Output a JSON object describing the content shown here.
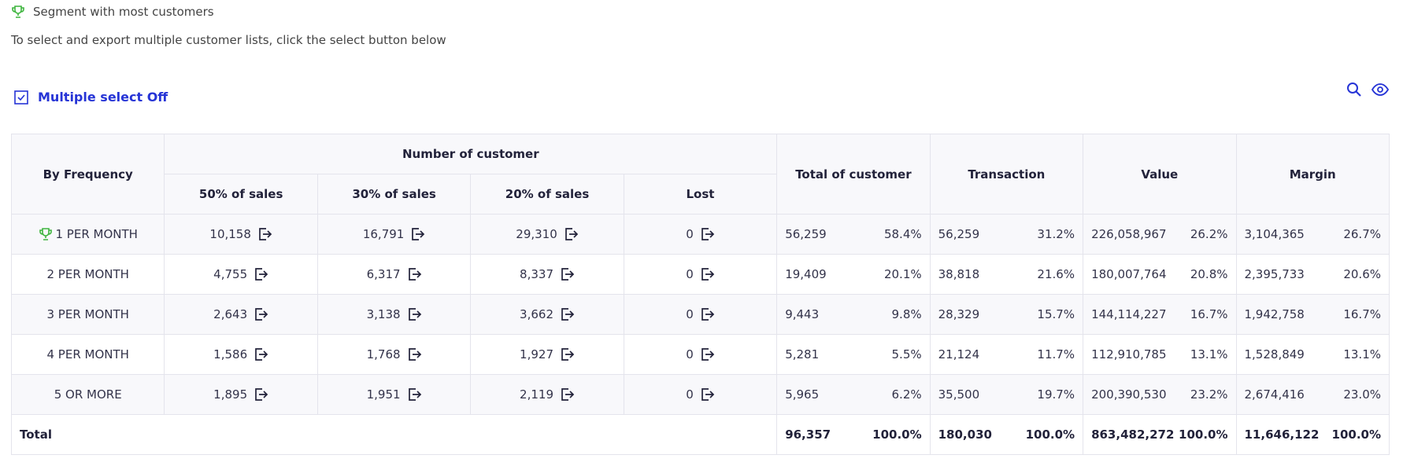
{
  "header": {
    "legend": "Segment with most customers",
    "instruction": "To select and export multiple customer lists, click the select button below",
    "toggle": "Multiple select Off"
  },
  "table": {
    "first_column": "By Frequency",
    "group": "Number of customer",
    "sub_columns": [
      "50% of sales",
      "30% of sales",
      "20% of sales",
      "Lost"
    ],
    "metric_columns": [
      "Total of customer",
      "Transaction",
      "Value",
      "Margin"
    ],
    "rows": [
      {
        "label": "1 PER MONTH",
        "trophy": true,
        "counts": [
          "10,158",
          "16,791",
          "29,310",
          "0"
        ],
        "metrics": [
          [
            "56,259",
            "58.4%"
          ],
          [
            "56,259",
            "31.2%"
          ],
          [
            "226,058,967",
            "26.2%"
          ],
          [
            "3,104,365",
            "26.7%"
          ]
        ]
      },
      {
        "label": "2 PER MONTH",
        "counts": [
          "4,755",
          "6,317",
          "8,337",
          "0"
        ],
        "metrics": [
          [
            "19,409",
            "20.1%"
          ],
          [
            "38,818",
            "21.6%"
          ],
          [
            "180,007,764",
            "20.8%"
          ],
          [
            "2,395,733",
            "20.6%"
          ]
        ]
      },
      {
        "label": "3 PER MONTH",
        "counts": [
          "2,643",
          "3,138",
          "3,662",
          "0"
        ],
        "metrics": [
          [
            "9,443",
            "9.8%"
          ],
          [
            "28,329",
            "15.7%"
          ],
          [
            "144,114,227",
            "16.7%"
          ],
          [
            "1,942,758",
            "16.7%"
          ]
        ]
      },
      {
        "label": "4 PER MONTH",
        "counts": [
          "1,586",
          "1,768",
          "1,927",
          "0"
        ],
        "metrics": [
          [
            "5,281",
            "5.5%"
          ],
          [
            "21,124",
            "11.7%"
          ],
          [
            "112,910,785",
            "13.1%"
          ],
          [
            "1,528,849",
            "13.1%"
          ]
        ]
      },
      {
        "label": "5 OR MORE",
        "counts": [
          "1,895",
          "1,951",
          "2,119",
          "0"
        ],
        "metrics": [
          [
            "5,965",
            "6.2%"
          ],
          [
            "35,500",
            "19.7%"
          ],
          [
            "200,390,530",
            "23.2%"
          ],
          [
            "2,674,416",
            "23.0%"
          ]
        ]
      }
    ],
    "total": {
      "label": "Total",
      "metrics": [
        [
          "96,357",
          "100.0%"
        ],
        [
          "180,030",
          "100.0%"
        ],
        [
          "863,482,272",
          "100.0%"
        ],
        [
          "11,646,122",
          "100.0%"
        ]
      ]
    }
  }
}
